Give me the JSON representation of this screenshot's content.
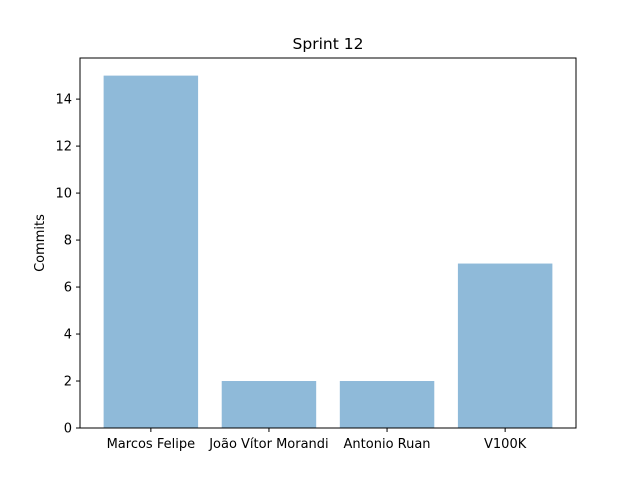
{
  "chart_data": {
    "type": "bar",
    "title": "Sprint 12",
    "xlabel": "",
    "ylabel": "Commits",
    "categories": [
      "Marcos Felipe",
      "João Vítor Morandi",
      "Antonio Ruan",
      "V100K"
    ],
    "values": [
      15,
      2,
      2,
      7
    ],
    "ylim": [
      0,
      15.75
    ],
    "yticks": [
      0,
      2,
      4,
      6,
      8,
      10,
      12,
      14
    ],
    "bar_color": "#8fbad9",
    "grid": false,
    "legend": "none"
  }
}
